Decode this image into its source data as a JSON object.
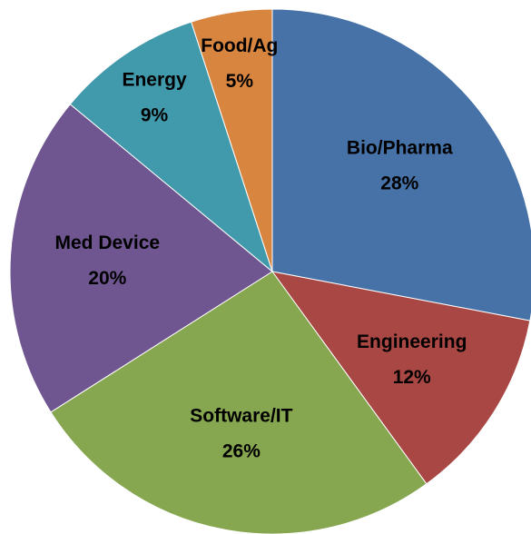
{
  "chart_data": {
    "type": "pie",
    "categories": [
      "Bio/Pharma",
      "Engineering",
      "Software/IT",
      "Med Device",
      "Energy",
      "Food/Ag"
    ],
    "values": [
      28,
      12,
      26,
      20,
      9,
      5
    ],
    "value_labels": [
      "28%",
      "12%",
      "26%",
      "20%",
      "9%",
      "5%"
    ],
    "colors": [
      "#4672a8",
      "#a84743",
      "#87a650",
      "#6f5690",
      "#4199ac",
      "#d88540"
    ]
  }
}
